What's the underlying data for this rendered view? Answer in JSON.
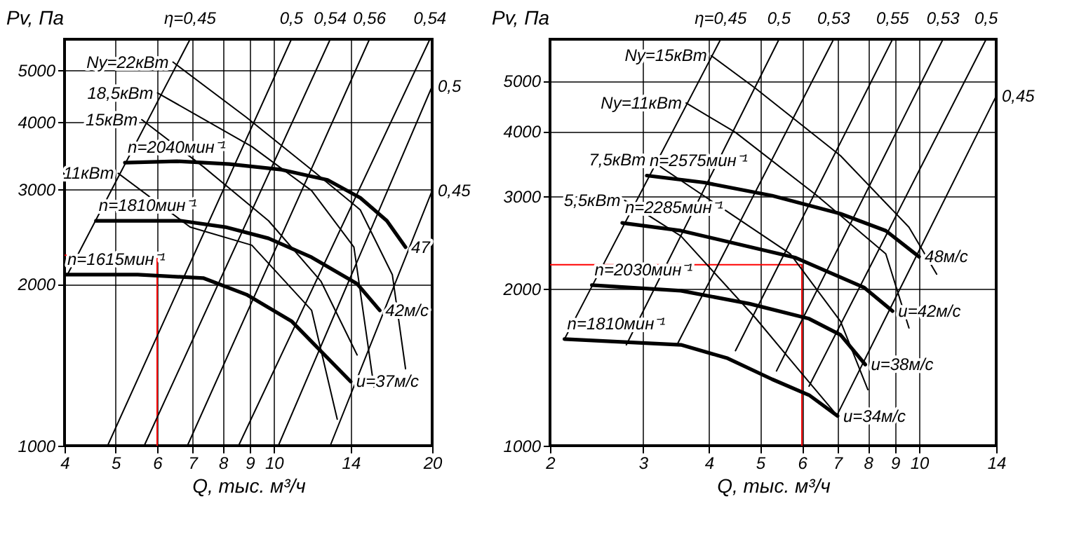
{
  "chart_data": [
    {
      "type": "line",
      "xlabel": "Q, тыс. м³/ч",
      "ylabel": "Pv, Па",
      "xlim": [
        4,
        20
      ],
      "ylim": [
        1000,
        5700
      ],
      "xticks": [
        4,
        5,
        6,
        7,
        8,
        9,
        10,
        14,
        20
      ],
      "yticks": [
        1000,
        2000,
        3000,
        4000,
        5000
      ],
      "log": "xy",
      "grid": true,
      "series": [
        {
          "name": "n=2040мин⁻¹",
          "color": "#000000",
          "x": [
            5.21,
            6.55,
            8.23,
            10.35,
            12.65,
            14.6,
            16.4,
            17.8
          ],
          "values": [
            3360,
            3380,
            3340,
            3260,
            3120,
            2890,
            2620,
            2340
          ]
        },
        {
          "name": "n=1810мин⁻¹",
          "color": "#000000",
          "x": [
            4.59,
            6.65,
            8.09,
            9.77,
            11.8,
            14.4,
            15.9
          ],
          "values": [
            2620,
            2620,
            2550,
            2430,
            2240,
            2000,
            1785
          ]
        },
        {
          "name": "n=1615мин⁻¹",
          "color": "#000000",
          "x": [
            4.0,
            5.51,
            7.34,
            8.87,
            10.8,
            14.0
          ],
          "values": [
            2080,
            2080,
            2050,
            1910,
            1705,
            1316
          ]
        },
        {
          "color": "#ff0000",
          "x": [
            4,
            6,
            6
          ],
          "values": [
            2260,
            2260,
            1000
          ]
        },
        {
          "color": "#000000",
          "x": [
            4.05,
            6.93
          ],
          "values": [
            2080,
            5700
          ]
        },
        {
          "color": "#000000",
          "x": [
            4.83,
            10.8
          ],
          "values": [
            1000,
            5700
          ]
        },
        {
          "color": "#000000",
          "x": [
            5.67,
            12.8
          ],
          "values": [
            1000,
            5700
          ]
        },
        {
          "color": "#000000",
          "x": [
            6.85,
            15.2
          ],
          "values": [
            1000,
            5700
          ]
        },
        {
          "color": "#000000",
          "x": [
            8.57,
            19.8
          ],
          "values": [
            1000,
            5700
          ]
        },
        {
          "color": "#000000",
          "x": [
            10.2,
            20
          ],
          "values": [
            1000,
            4660
          ]
        },
        {
          "color": "#000000",
          "x": [
            12.8,
            20
          ],
          "values": [
            1000,
            2980
          ]
        },
        {
          "color": "#000000",
          "x": [
            6.43,
            8.87,
            11.8,
            14.6,
            16.8,
            17.8
          ],
          "values": [
            5170,
            4080,
            3260,
            2745,
            2080,
            1390
          ]
        },
        {
          "color": "#000000",
          "x": [
            6.01,
            9.08,
            11.8,
            14.2,
            15.5
          ],
          "values": [
            4530,
            3600,
            2980,
            2340,
            1286
          ]
        },
        {
          "color": "#000000",
          "x": [
            5.61,
            7.35,
            9.77,
            12.3,
            14.4
          ],
          "values": [
            4040,
            3300,
            2620,
            2020,
            1475
          ]
        },
        {
          "color": "#000000",
          "x": [
            5.06,
            6.93,
            9.08,
            11.8,
            13.2
          ],
          "values": [
            3210,
            2550,
            2360,
            1785,
            1120
          ]
        }
      ],
      "annotations": [
        {
          "text": "η=0,45",
          "x": 6.93,
          "y": 5700
        },
        {
          "text": "0,5",
          "x": 10.8,
          "y": 5700
        },
        {
          "text": "0,54",
          "x": 12.8,
          "y": 5700
        },
        {
          "text": "0,56",
          "x": 15.2,
          "y": 5700
        },
        {
          "text": "0,54",
          "x": 19.8,
          "y": 5700
        },
        {
          "text": "0,5",
          "x": 20,
          "y": 4660
        },
        {
          "text": "0,45",
          "x": 20,
          "y": 2980
        },
        {
          "text": "Ny=22кВт",
          "x": 6.43,
          "y": 5170
        },
        {
          "text": "18,5кВт",
          "x": 6.01,
          "y": 4530
        },
        {
          "text": "15кВт",
          "x": 5.61,
          "y": 4040
        },
        {
          "text": "11кВт",
          "x": 5.06,
          "y": 3210
        },
        {
          "text": "47",
          "x": 17.8,
          "y": 2340
        },
        {
          "text": "42м/с",
          "x": 15.9,
          "y": 1785
        },
        {
          "text": "u=37м/с",
          "x": 14.0,
          "y": 1316
        }
      ]
    },
    {
      "type": "line",
      "xlabel": "Q, тыс. м³/ч",
      "ylabel": "Pv, Па",
      "xlim": [
        2,
        14
      ],
      "ylim": [
        1000,
        6000
      ],
      "xticks": [
        2,
        3,
        4,
        5,
        6,
        7,
        8,
        9,
        10,
        14
      ],
      "yticks": [
        1000,
        2000,
        3000,
        4000,
        5000
      ],
      "log": "xy",
      "grid": true,
      "series": [
        {
          "name": "n=2575мин⁻¹",
          "color": "#000000",
          "x": [
            3.05,
            3.92,
            5.27,
            7.1,
            8.65,
            10.0
          ],
          "values": [
            3290,
            3190,
            3010,
            2780,
            2580,
            2300
          ]
        },
        {
          "name": "n=2285мин⁻¹",
          "color": "#000000",
          "x": [
            2.74,
            3.54,
            5.84,
            7.86,
            8.91
          ],
          "values": [
            2670,
            2580,
            2290,
            2010,
            1810
          ]
        },
        {
          "name": "n=2030мин⁻¹",
          "color": "#000000",
          "x": [
            2.4,
            3.54,
            4.77,
            6.19,
            7.1,
            7.91
          ],
          "values": [
            2030,
            1980,
            1870,
            1750,
            1630,
            1430
          ]
        },
        {
          "name": "n=1810мин⁻¹",
          "color": "#000000",
          "x": [
            2.13,
            3.54,
            4.34,
            5.27,
            6.19,
            7.01
          ],
          "values": [
            1600,
            1560,
            1470,
            1340,
            1250,
            1140
          ]
        },
        {
          "color": "#ff0000",
          "x": [
            2,
            6,
            6
          ],
          "values": [
            2220,
            2220,
            1000
          ]
        },
        {
          "color": "#000000",
          "x": [
            2.13,
            4.21
          ],
          "values": [
            1600,
            6000
          ]
        },
        {
          "color": "#000000",
          "x": [
            2.79,
            5.43
          ],
          "values": [
            1560,
            6000
          ]
        },
        {
          "color": "#000000",
          "x": [
            3.48,
            6.89
          ],
          "values": [
            1560,
            6000
          ]
        },
        {
          "color": "#000000",
          "x": [
            4.49,
            8.91
          ],
          "values": [
            1520,
            6000
          ]
        },
        {
          "color": "#000000",
          "x": [
            5.37,
            11.1
          ],
          "values": [
            1390,
            6000
          ]
        },
        {
          "color": "#000000",
          "x": [
            6.19,
            13.4
          ],
          "values": [
            1300,
            6000
          ]
        },
        {
          "color": "#000000",
          "x": [
            6.98,
            14.0
          ],
          "values": [
            1140,
            4670
          ]
        },
        {
          "color": "#000000",
          "x": [
            4.04,
            4.89,
            7.1,
            9.57,
            10.8
          ],
          "values": [
            5580,
            4840,
            3590,
            2620,
            2130
          ]
        },
        {
          "color": "#000000",
          "x": [
            3.62,
            4.49,
            6.41,
            8.65,
            9.57
          ],
          "values": [
            4530,
            3980,
            3010,
            2330,
            1680
          ]
        },
        {
          "color": "#000000",
          "x": [
            3.09,
            5.7,
            7.1,
            8.0
          ],
          "values": [
            3530,
            2330,
            1730,
            1280
          ]
        },
        {
          "color": "#000000",
          "x": [
            2.77,
            3.54,
            4.89,
            6.05,
            7.01
          ],
          "values": [
            2950,
            2520,
            1760,
            1360,
            1140
          ]
        }
      ],
      "annotations": [
        {
          "text": "η=0,45",
          "x": 4.21,
          "y": 6000
        },
        {
          "text": "0,5",
          "x": 5.43,
          "y": 6000
        },
        {
          "text": "0,53",
          "x": 6.89,
          "y": 6000
        },
        {
          "text": "0,55",
          "x": 8.91,
          "y": 6000
        },
        {
          "text": "0,53",
          "x": 11.1,
          "y": 6000
        },
        {
          "text": "0,5",
          "x": 13.4,
          "y": 6000
        },
        {
          "text": "0,45",
          "x": 14.0,
          "y": 4670
        },
        {
          "text": "Ny=15кВт",
          "x": 4.04,
          "y": 5580
        },
        {
          "text": "Ny=11кВт",
          "x": 3.62,
          "y": 4530
        },
        {
          "text": "7,5кВт",
          "x": 3.09,
          "y": 3530
        },
        {
          "text": "5,5кВт",
          "x": 2.77,
          "y": 2950
        },
        {
          "text": "48м/с",
          "x": 10.0,
          "y": 2300
        },
        {
          "text": "u=42м/с",
          "x": 8.91,
          "y": 1810
        },
        {
          "text": "u=38м/с",
          "x": 7.91,
          "y": 1430
        },
        {
          "text": "u=34м/с",
          "x": 7.01,
          "y": 1140
        }
      ]
    }
  ]
}
